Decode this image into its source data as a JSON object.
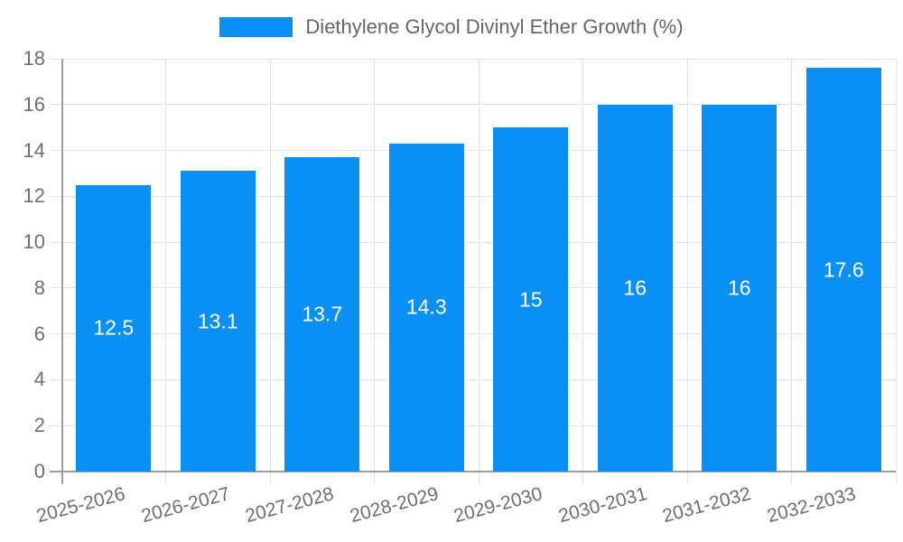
{
  "chart_data": {
    "type": "bar",
    "title": "Diethylene Glycol Divinyl Ether Growth (%)",
    "categories": [
      "2025-2026",
      "2026-2027",
      "2027-2028",
      "2028-2029",
      "2029-2030",
      "2030-2031",
      "2031-2032",
      "2032-2033"
    ],
    "values": [
      12.5,
      13.1,
      13.7,
      14.3,
      15,
      16,
      16,
      17.6
    ],
    "value_labels": [
      "12.5",
      "13.1",
      "13.7",
      "14.3",
      "15",
      "16",
      "16",
      "17.6"
    ],
    "xlabel": "",
    "ylabel": "",
    "ylim": [
      0,
      18
    ],
    "ytick_step": 2,
    "ytick_labels": [
      "0",
      "2",
      "4",
      "6",
      "8",
      "10",
      "12",
      "14",
      "16",
      "18"
    ],
    "grid": true,
    "legend_position": "top-center",
    "x_label_rotation_deg": -15,
    "colors": {
      "bar": "#0A8FF5",
      "bar_value_text": "#ffffff",
      "grid": "#e3e3e3",
      "axis": "#9e9e9e",
      "tick_text": "#6e6e6e",
      "legend_text": "#666666",
      "background": "#ffffff"
    }
  }
}
